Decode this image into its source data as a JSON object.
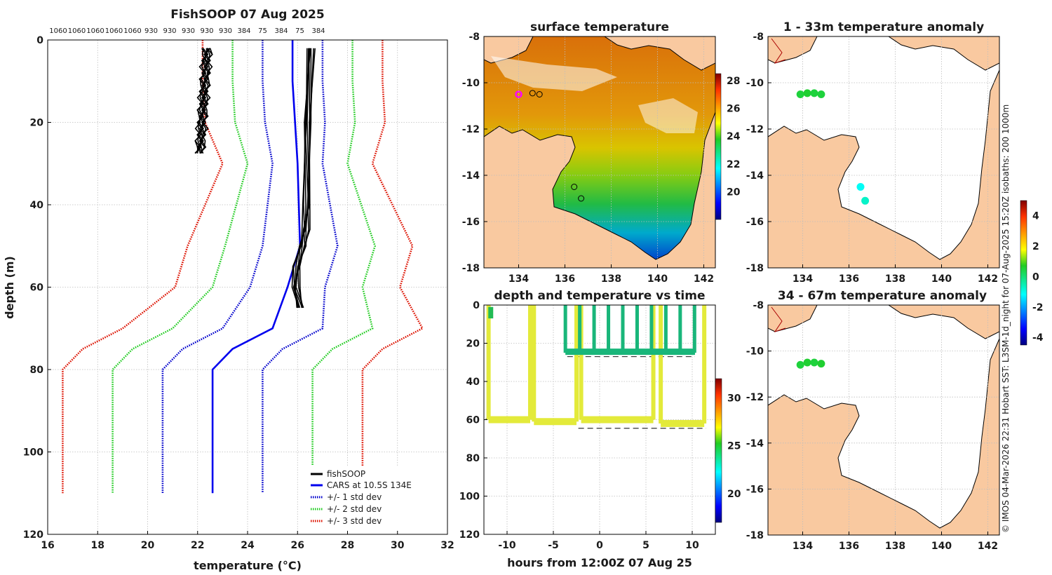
{
  "figure_title": "FishSOOP 07 Aug 2025",
  "side_note": "© IMOS 04-Mar-2026 22:31 Hobart SST: L3SM-1d_night for 07-Aug-2025 15:20Z isobaths: 200  1000m",
  "colors": {
    "fishsoop": "#000000",
    "cars": "#0000ee",
    "std1": "#0000cc",
    "std2": "#22cc22",
    "std3": "#dd1100",
    "land": "#f9c9a0",
    "coast": "#000000",
    "ocean_blank": "#ffffff"
  },
  "chart_data": [
    {
      "id": "profile",
      "type": "line",
      "title": "FishSOOP 07 Aug 2025",
      "xlabel": "temperature (°C)",
      "ylabel": "depth (m)",
      "xlim": [
        16,
        32
      ],
      "ylim": [
        120,
        0
      ],
      "xticks": [
        16,
        18,
        20,
        22,
        24,
        26,
        28,
        30,
        32
      ],
      "yticks": [
        0,
        20,
        40,
        60,
        80,
        100,
        120
      ],
      "top_labels": [
        "1060",
        "1060",
        "1060",
        "1060",
        "1060",
        "930",
        "930",
        "930",
        "930",
        "930",
        "384",
        "75",
        "384",
        "75",
        "384"
      ],
      "grid": true,
      "legend_position": "bottom-right",
      "legend": [
        {
          "key": "fishsoop",
          "label": "fishSOOP",
          "style": "solid"
        },
        {
          "key": "cars",
          "label": "CARS at 10.5S 134E",
          "style": "solid"
        },
        {
          "key": "std1",
          "label": "+/- 1 std dev",
          "style": "dotted"
        },
        {
          "key": "std2",
          "label": "+/- 2 std dev",
          "style": "dotted"
        },
        {
          "key": "std3",
          "label": "+/- 3 std dev",
          "style": "dotted"
        }
      ],
      "depth": [
        0,
        10,
        20,
        30,
        50,
        60,
        70,
        75,
        80,
        110
      ],
      "cars_temp": [
        25.8,
        25.8,
        25.9,
        26.0,
        26.1,
        25.6,
        25.0,
        23.4,
        22.6,
        22.6
      ],
      "std_offsets": {
        "std1": [
          1.2,
          1.2,
          1.2,
          1.0,
          1.5,
          1.5,
          2.0,
          2.0,
          2.0,
          2.0
        ],
        "std2": [
          2.4,
          2.4,
          2.4,
          2.0,
          3.0,
          3.0,
          4.0,
          4.0,
          4.0,
          4.0
        ],
        "std3": [
          3.6,
          3.6,
          3.6,
          3.0,
          4.5,
          4.5,
          6.0,
          6.0,
          6.0,
          6.0
        ]
      },
      "fishsoop_shallow": {
        "depth_range": [
          2,
          28
        ],
        "temp_top": 22.4,
        "temp_bottom": 22.1
      },
      "fishsoop_deep": {
        "depth": [
          2,
          20,
          40,
          46,
          50,
          55,
          60,
          65
        ],
        "temp": [
          26.5,
          26.4,
          26.4,
          26.3,
          26.2,
          26.0,
          25.9,
          26.1
        ]
      }
    },
    {
      "id": "sst",
      "type": "heatmap",
      "title": "surface temperature",
      "xlim": [
        132.5,
        142.5
      ],
      "ylim": [
        -18,
        -8
      ],
      "xticks": [
        134,
        136,
        138,
        140,
        142
      ],
      "yticks": [
        -8,
        -10,
        -12,
        -14,
        -16,
        -18
      ],
      "colorbar": {
        "ticks": [
          20,
          22,
          24,
          26,
          28
        ],
        "range": [
          18,
          28.5
        ]
      },
      "markers": [
        {
          "lon": 134.0,
          "lat": -10.5,
          "color": "#ff00ff"
        },
        {
          "lon": 134.6,
          "lat": -10.45,
          "color": "#000000"
        },
        {
          "lon": 134.9,
          "lat": -10.5,
          "color": "#000000"
        },
        {
          "lon": 136.4,
          "lat": -14.5,
          "color": "#000000"
        },
        {
          "lon": 136.7,
          "lat": -15.0,
          "color": "#000000"
        }
      ]
    },
    {
      "id": "timeseries",
      "type": "scatter",
      "title": "depth and temperature vs time",
      "xlabel": "hours from 12:00Z 07 Aug 25",
      "xlim": [
        -12.5,
        12.5
      ],
      "ylim": [
        120,
        0
      ],
      "xticks": [
        -10,
        -5,
        0,
        5,
        10
      ],
      "yticks": [
        0,
        20,
        40,
        60,
        80,
        100,
        120
      ],
      "colorbar": {
        "ticks": [
          20,
          25,
          30
        ],
        "range": [
          17,
          32
        ]
      },
      "deep_tows": [
        {
          "start": -12,
          "end": -7.5,
          "depth": 60
        },
        {
          "start": -7.1,
          "end": -2.5,
          "depth": 61
        },
        {
          "start": -2.0,
          "end": 5.8,
          "depth": 60
        },
        {
          "start": 6.6,
          "end": 11.3,
          "depth": 62
        }
      ],
      "shallow_tows": [
        {
          "start": -3.7,
          "end": 10.3,
          "depth": 25
        }
      ],
      "dashes": [
        {
          "start": -12.3,
          "end": -2.3,
          "depth": 59.5
        },
        {
          "start": -2.3,
          "end": 11.5,
          "depth": 64.5
        },
        {
          "start": -3.5,
          "end": 10.3,
          "depth": 27
        }
      ]
    },
    {
      "id": "anom1",
      "type": "scatter",
      "title": "1 - 33m temperature anomaly",
      "xlim": [
        132.5,
        142.5
      ],
      "ylim": [
        -18,
        -8
      ],
      "xticks": [
        134,
        136,
        138,
        140,
        142
      ],
      "yticks": [
        -8,
        -10,
        -12,
        -14,
        -16,
        -18
      ],
      "points": [
        {
          "lon": 133.9,
          "lat": -10.5,
          "anom": 0.5
        },
        {
          "lon": 134.2,
          "lat": -10.45,
          "anom": 0.6
        },
        {
          "lon": 134.5,
          "lat": -10.45,
          "anom": 0.5
        },
        {
          "lon": 134.8,
          "lat": -10.5,
          "anom": 0.5
        },
        {
          "lon": 136.5,
          "lat": -14.5,
          "anom": -1.1
        },
        {
          "lon": 136.7,
          "lat": -15.1,
          "anom": -0.7
        }
      ]
    },
    {
      "id": "anom2",
      "type": "scatter",
      "title": "34 - 67m temperature anomaly",
      "xlim": [
        132.5,
        142.5
      ],
      "ylim": [
        -18,
        -8
      ],
      "xticks": [
        134,
        136,
        138,
        140,
        142
      ],
      "yticks": [
        -8,
        -10,
        -12,
        -14,
        -16,
        -18
      ],
      "colorbar": {
        "ticks": [
          4,
          2,
          0,
          -2,
          -4
        ],
        "range": [
          -4.5,
          5
        ]
      },
      "points": [
        {
          "lon": 133.9,
          "lat": -10.6,
          "anom": 0.5
        },
        {
          "lon": 134.2,
          "lat": -10.5,
          "anom": 0.6
        },
        {
          "lon": 134.5,
          "lat": -10.5,
          "anom": 0.5
        },
        {
          "lon": 134.8,
          "lat": -10.55,
          "anom": 0.6
        }
      ]
    }
  ]
}
